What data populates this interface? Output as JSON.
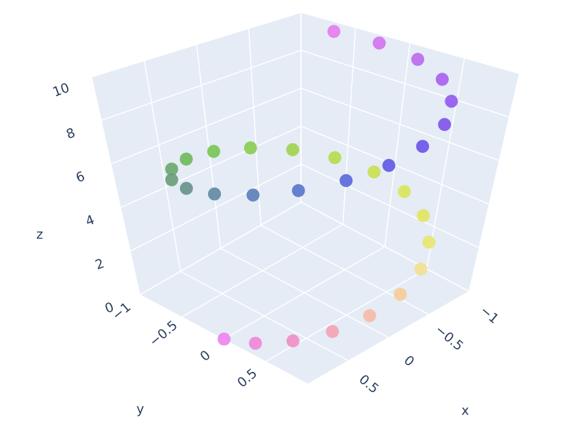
{
  "chart_data": {
    "type": "scatter3d",
    "xlim": [
      -1,
      1
    ],
    "ylim": [
      -1,
      1
    ],
    "zlim": [
      0,
      10
    ],
    "xticks": [
      {
        "value": -1,
        "label": "−1"
      },
      {
        "value": -0.5,
        "label": "−0.5"
      },
      0,
      0.5
    ],
    "yticks": [
      {
        "value": -1,
        "label": "−1"
      },
      {
        "value": -0.5,
        "label": "−0.5"
      },
      0,
      0.5
    ],
    "zticks": [
      0,
      2,
      4,
      6,
      8,
      10
    ],
    "x_label": "x",
    "y_label": "y",
    "z_label": "z",
    "grid": true,
    "series": [
      {
        "x": [
          1,
          0.945,
          0.786,
          0.54,
          0.235,
          -0.096,
          -0.416,
          -0.691,
          -0.889,
          -0.99,
          -0.981,
          -0.863,
          -0.654,
          -0.37,
          -0.046,
          0.284,
          0.582,
          0.819,
          0.96,
          0.999,
          0.93,
          0.754,
          0.491,
          0.18,
          -0.146,
          -0.461,
          -0.73,
          -0.911,
          -0.997,
          -0.968,
          -0.839
        ],
        "y": [
          0,
          0.327,
          0.619,
          0.841,
          0.972,
          0.995,
          0.909,
          0.723,
          0.457,
          0.141,
          -0.19,
          -0.505,
          -0.757,
          -0.929,
          -0.999,
          -0.959,
          -0.813,
          -0.574,
          -0.279,
          0.05,
          0.374,
          0.657,
          0.871,
          0.984,
          0.989,
          0.887,
          0.683,
          0.412,
          0.091,
          -0.246,
          -0.544
        ],
        "z": [
          0,
          0.333,
          0.667,
          1,
          1.333,
          1.667,
          2,
          2.333,
          2.667,
          3,
          3.333,
          3.667,
          4,
          4.333,
          4.667,
          5,
          5.333,
          5.667,
          6,
          6.333,
          6.667,
          7,
          7.333,
          7.667,
          8,
          8.333,
          8.667,
          9,
          9.333,
          9.667,
          10
        ],
        "marker_colors": [
          "#ee82ee",
          "#ef86d8",
          "#f08ec8",
          "#f3a3b5",
          "#f5bba5",
          "#f6cc98",
          "#f2e08f",
          "#e9e66e",
          "#e2e65e",
          "#d8e55a",
          "#c9e052",
          "#b5db4e",
          "#9fd44d",
          "#88cc4f",
          "#77c453",
          "#6eb85c",
          "#6aa86a",
          "#689c7a",
          "#66908a",
          "#5e8aa0",
          "#5a80b8",
          "#5774cc",
          "#5966dc",
          "#5f58e6",
          "#6c52ea",
          "#7d52ec",
          "#9258ee",
          "#a75fee",
          "#bd68ee",
          "#d172ee",
          "#e47cee"
        ]
      }
    ]
  }
}
